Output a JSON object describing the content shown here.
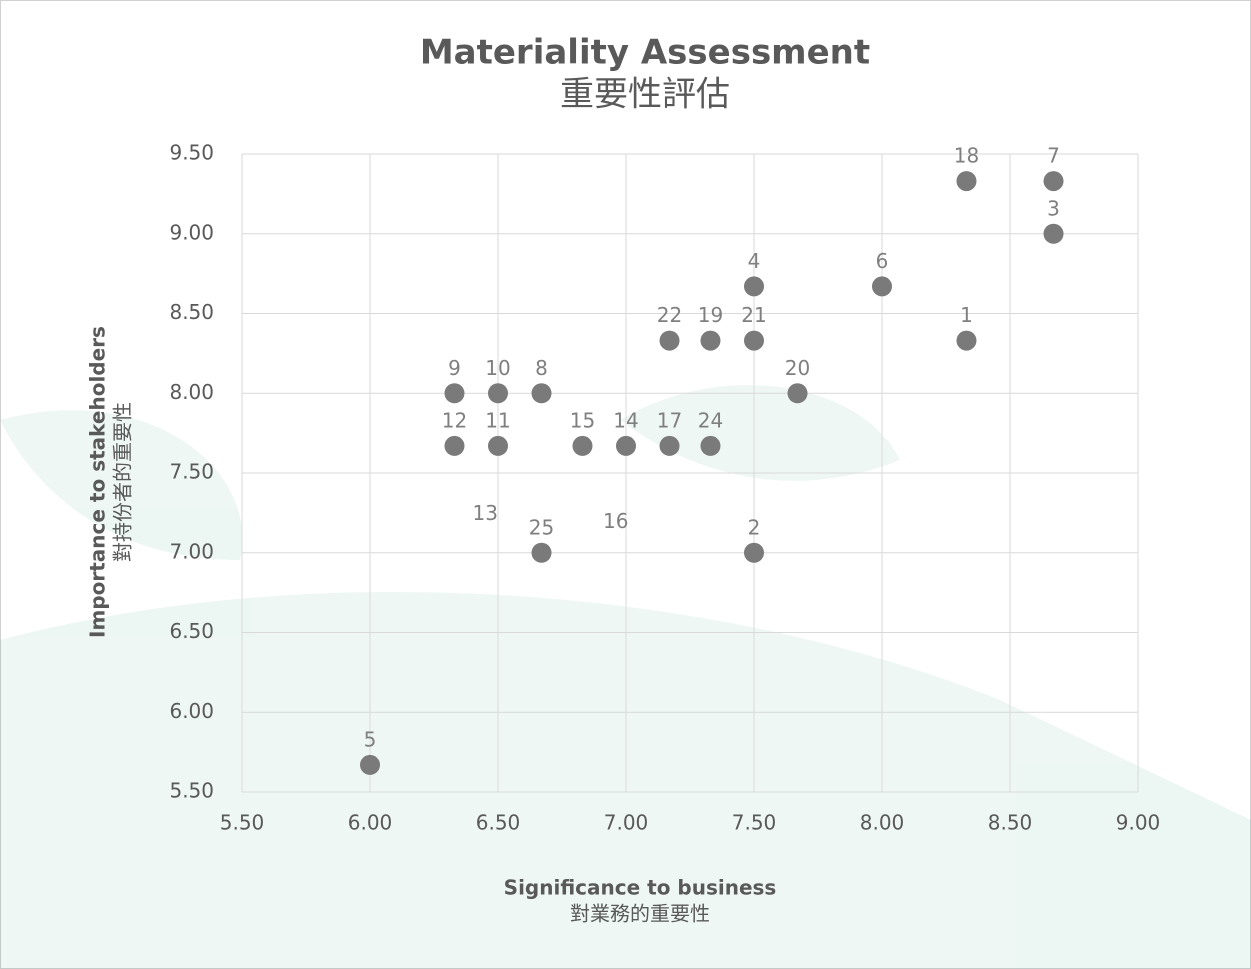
{
  "chart_data": {
    "type": "scatter",
    "title": [
      "Materiality Assessment",
      "重要性評估"
    ],
    "x_label": [
      "Significance to business",
      "對業務的重要性"
    ],
    "y_label": [
      "Importance to stakeholders",
      "對持份者的重要性"
    ],
    "color": "#7a7a7a",
    "grid": true,
    "xlim": [
      5.5,
      9.0
    ],
    "ylim": [
      5.5,
      9.5
    ],
    "xticks": [
      {
        "value": 5.5,
        "label": "5.50"
      },
      {
        "value": 6.0,
        "label": "6.00"
      },
      {
        "value": 6.5,
        "label": "6.50"
      },
      {
        "value": 7.0,
        "label": "7.00"
      },
      {
        "value": 7.5,
        "label": "7.50"
      },
      {
        "value": 8.0,
        "label": "8.00"
      },
      {
        "value": 8.5,
        "label": "8.50"
      },
      {
        "value": 9.0,
        "label": "9.00"
      }
    ],
    "yticks": [
      {
        "value": 5.5,
        "label": "5.50"
      },
      {
        "value": 6.0,
        "label": "6.00"
      },
      {
        "value": 6.5,
        "label": "6.50"
      },
      {
        "value": 7.0,
        "label": "7.00"
      },
      {
        "value": 7.5,
        "label": "7.50"
      },
      {
        "value": 8.0,
        "label": "8.00"
      },
      {
        "value": 8.5,
        "label": "8.50"
      },
      {
        "value": 9.0,
        "label": "9.00"
      },
      {
        "value": 9.5,
        "label": "9.50"
      }
    ],
    "labels": [
      "18",
      "7",
      "3",
      "4",
      "6",
      "22",
      "19",
      "21",
      "1",
      "20",
      "9",
      "10",
      "8",
      "12",
      "11",
      "15",
      "14",
      "17",
      "24",
      "25",
      "2",
      "5"
    ],
    "x": [
      8.33,
      8.67,
      8.67,
      7.5,
      8.0,
      7.17,
      7.33,
      7.5,
      8.33,
      7.67,
      6.33,
      6.5,
      6.67,
      6.33,
      6.5,
      6.83,
      7.0,
      7.17,
      7.33,
      6.67,
      7.5,
      6.0
    ],
    "y": [
      9.33,
      9.33,
      9.0,
      8.67,
      8.67,
      8.33,
      8.33,
      8.33,
      8.33,
      8.0,
      8.0,
      8.0,
      8.0,
      7.67,
      7.67,
      7.67,
      7.67,
      7.67,
      7.67,
      7.0,
      7.0,
      5.67
    ],
    "annotations": [
      {
        "text": "13",
        "x": 6.45,
        "y": 7.24
      },
      {
        "text": "16",
        "x": 6.96,
        "y": 7.19
      }
    ]
  }
}
